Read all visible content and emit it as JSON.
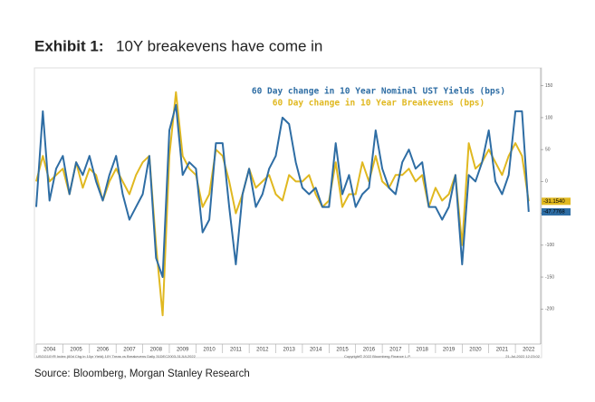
{
  "header": {
    "exhibit": "Exhibit 1:",
    "title": "10Y breakevens have come in"
  },
  "source": "Source: Bloomberg, Morgan Stanley Research",
  "chart_data": {
    "type": "line",
    "footer_left": "USGG10YR Index (60d Chg in 10yr Yield) 10Y Treas vs Breakevens Daily 31DEC2003-31JUL2022",
    "footer_center": "Copyright© 2022 Bloomberg Finance L.P.",
    "footer_right": "21-Jul-2022 12:23:02",
    "x": [
      2004,
      2004.25,
      2004.5,
      2004.75,
      2005,
      2005.25,
      2005.5,
      2005.75,
      2006,
      2006.25,
      2006.5,
      2006.75,
      2007,
      2007.25,
      2007.5,
      2007.75,
      2008,
      2008.25,
      2008.5,
      2008.75,
      2009,
      2009.25,
      2009.5,
      2009.75,
      2010,
      2010.25,
      2010.5,
      2010.75,
      2011,
      2011.25,
      2011.5,
      2011.75,
      2012,
      2012.25,
      2012.5,
      2012.75,
      2013,
      2013.25,
      2013.5,
      2013.75,
      2014,
      2014.25,
      2014.5,
      2014.75,
      2015,
      2015.25,
      2015.5,
      2015.75,
      2016,
      2016.25,
      2016.5,
      2016.75,
      2017,
      2017.25,
      2017.5,
      2017.75,
      2018,
      2018.25,
      2018.5,
      2018.75,
      2019,
      2019.25,
      2019.5,
      2019.75,
      2020,
      2020.25,
      2020.5,
      2020.75,
      2021,
      2021.25,
      2021.5,
      2021.75,
      2022,
      2022.25,
      2022.5
    ],
    "series": [
      {
        "name": "60 Day change in 10 Year Nominal UST Yields (bps)",
        "color": "#2e6da4",
        "end_label": "-47.7768",
        "values": [
          -40,
          110,
          -30,
          20,
          40,
          -20,
          30,
          10,
          40,
          0,
          -30,
          10,
          40,
          -20,
          -60,
          -40,
          -20,
          40,
          -120,
          -150,
          80,
          120,
          10,
          30,
          20,
          -80,
          -60,
          60,
          60,
          -40,
          -130,
          -20,
          20,
          -40,
          -20,
          20,
          40,
          100,
          90,
          30,
          -10,
          -20,
          -10,
          -40,
          -40,
          60,
          -20,
          10,
          -40,
          -20,
          -10,
          80,
          20,
          -10,
          -20,
          30,
          50,
          20,
          30,
          -40,
          -40,
          -60,
          -40,
          10,
          -130,
          10,
          0,
          30,
          80,
          0,
          -20,
          10,
          110,
          110,
          -47.7768
        ]
      },
      {
        "name": "60 Day change in 10 Year Breakevens (bps)",
        "color": "#e0b820",
        "end_label": "-31.1540",
        "values": [
          0,
          40,
          0,
          10,
          20,
          -20,
          30,
          -10,
          20,
          10,
          -30,
          0,
          20,
          0,
          -20,
          10,
          30,
          40,
          -100,
          -210,
          40,
          140,
          40,
          20,
          10,
          -40,
          -20,
          50,
          40,
          0,
          -50,
          -20,
          20,
          -10,
          0,
          10,
          -20,
          -30,
          10,
          0,
          0,
          10,
          -20,
          -40,
          -30,
          30,
          -40,
          -20,
          -20,
          30,
          0,
          40,
          0,
          -10,
          10,
          10,
          20,
          0,
          10,
          -40,
          -10,
          -30,
          -20,
          10,
          -100,
          60,
          20,
          30,
          50,
          30,
          10,
          40,
          60,
          40,
          -31.154
        ]
      }
    ],
    "xlim": [
      2004,
      2022.95
    ],
    "ylim": [
      -255,
      178
    ],
    "yticks": [
      150,
      100,
      50,
      0,
      -50,
      -100,
      -150,
      -200
    ],
    "xticks": [
      {
        "value": 2004.5,
        "label": "2004"
      },
      {
        "value": 2005.5,
        "label": "2005"
      },
      {
        "value": 2006.5,
        "label": "2006"
      },
      {
        "value": 2007.5,
        "label": "2007"
      },
      {
        "value": 2008.5,
        "label": "2008"
      },
      {
        "value": 2009.5,
        "label": "2009"
      },
      {
        "value": 2010.5,
        "label": "2010"
      },
      {
        "value": 2011.5,
        "label": "2011"
      },
      {
        "value": 2012.5,
        "label": "2012"
      },
      {
        "value": 2013.5,
        "label": "2013"
      },
      {
        "value": 2014.5,
        "label": "2014"
      },
      {
        "value": 2015.5,
        "label": "2015"
      },
      {
        "value": 2016.5,
        "label": "2016"
      },
      {
        "value": 2017.5,
        "label": "2017"
      },
      {
        "value": 2018.5,
        "label": "2018"
      },
      {
        "value": 2019.5,
        "label": "2019"
      },
      {
        "value": 2020.5,
        "label": "2020"
      },
      {
        "value": 2021.5,
        "label": "2021"
      },
      {
        "value": 2022.5,
        "label": "2022"
      }
    ]
  }
}
